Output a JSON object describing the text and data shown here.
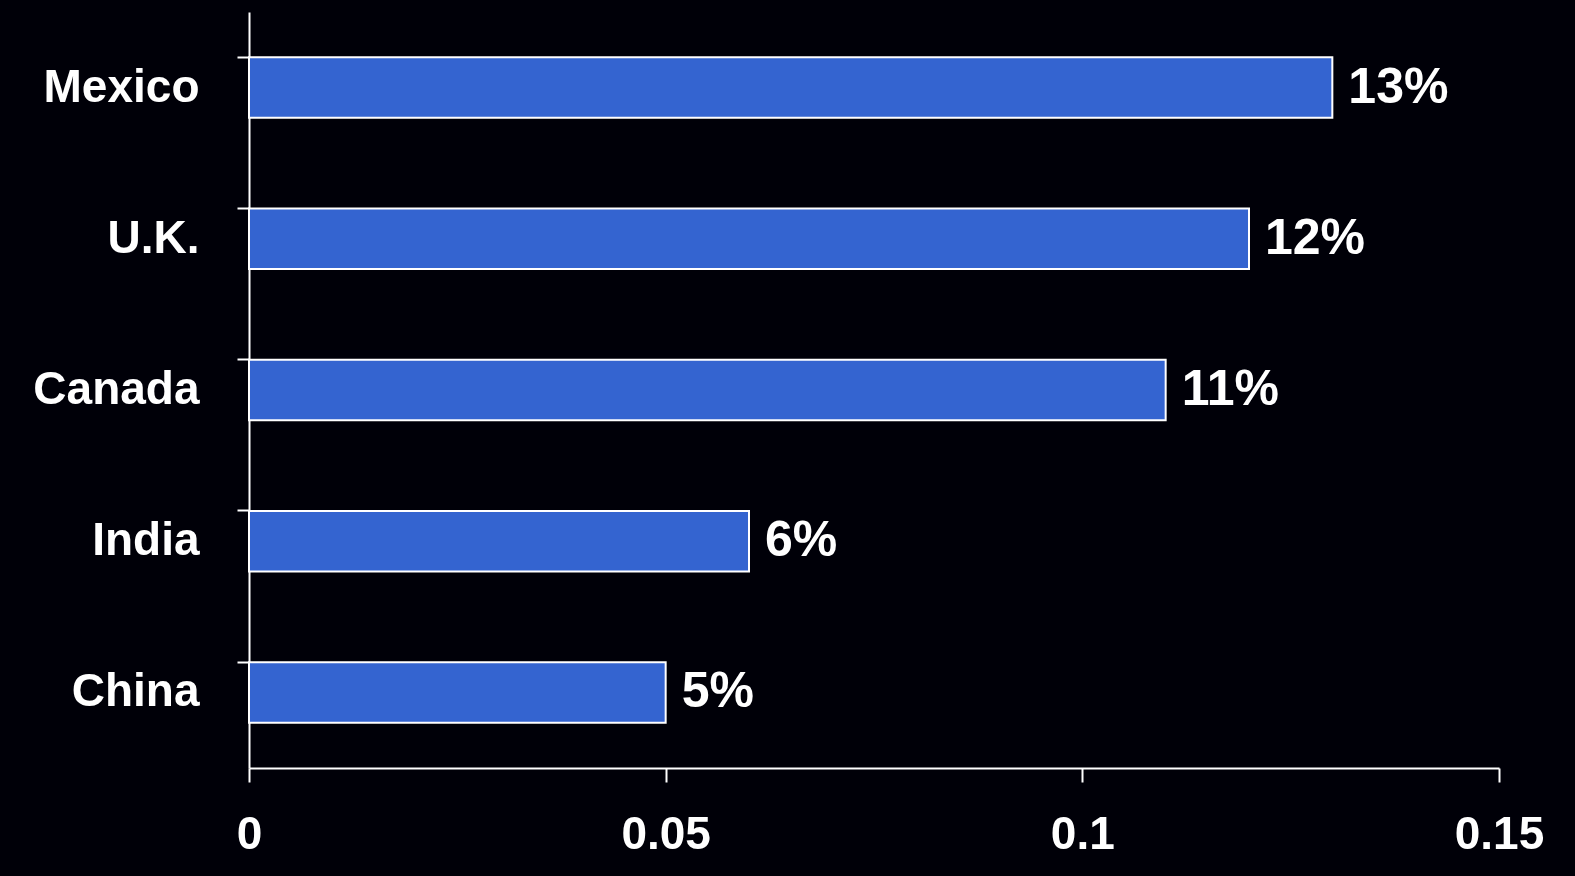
{
  "chart_data": {
    "type": "bar",
    "orientation": "horizontal",
    "categories": [
      "Mexico",
      "U.K.",
      "Canada",
      "India",
      "China"
    ],
    "values": [
      0.13,
      0.12,
      0.11,
      0.06,
      0.05
    ],
    "value_labels": [
      "13%",
      "12%",
      "11%",
      "6%",
      "5%"
    ],
    "color": "#3464d0",
    "xlim": [
      0,
      0.15
    ],
    "xticks": [
      0,
      0.05,
      0.1,
      0.15
    ],
    "grid": false
  }
}
